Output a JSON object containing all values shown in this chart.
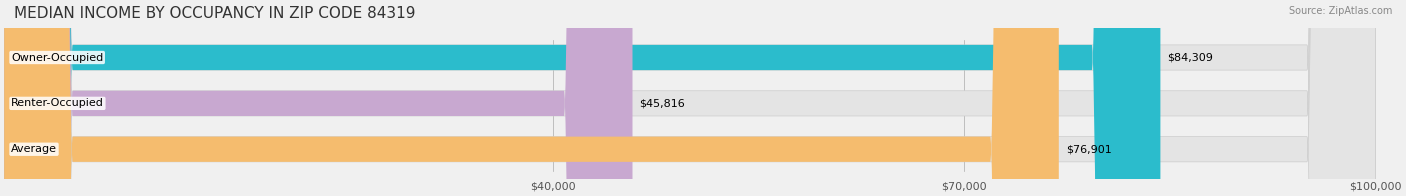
{
  "title": "MEDIAN INCOME BY OCCUPANCY IN ZIP CODE 84319",
  "source": "Source: ZipAtlas.com",
  "categories": [
    "Owner-Occupied",
    "Renter-Occupied",
    "Average"
  ],
  "values": [
    84309,
    45816,
    76901
  ],
  "labels": [
    "$84,309",
    "$45,816",
    "$76,901"
  ],
  "bar_colors": [
    "#2bbccc",
    "#c8a8d0",
    "#f5bc6e"
  ],
  "bar_edge_colors": [
    "#2bbccc",
    "#c8a8d0",
    "#f5bc6e"
  ],
  "background_color": "#f0f0f0",
  "bar_bg_color": "#e8e8e8",
  "xlim": [
    0,
    100000
  ],
  "xticks": [
    40000,
    70000,
    100000
  ],
  "xtick_labels": [
    "$40,000",
    "$70,000",
    "$100,000"
  ],
  "title_fontsize": 11,
  "label_fontsize": 8,
  "tick_fontsize": 8,
  "bar_height": 0.55
}
